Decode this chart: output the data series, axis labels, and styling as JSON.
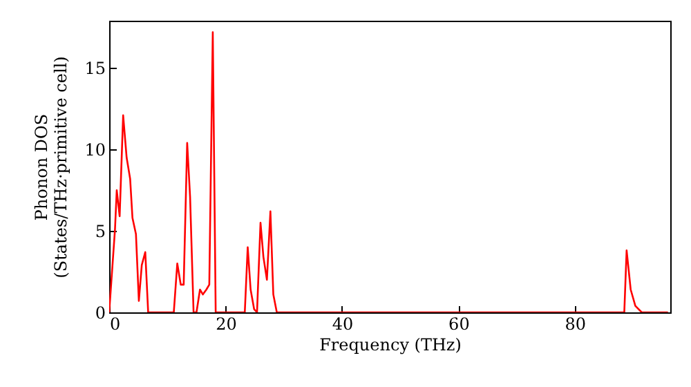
{
  "chart_data": {
    "type": "line",
    "xlabel": "Frequency (THz)",
    "ylabel": "Phonon DOS\n(States/THz·primitive cell)",
    "xlim": [
      0,
      96.4
    ],
    "ylim": [
      0,
      17.9
    ],
    "xticks": [
      0,
      20,
      40,
      60,
      80
    ],
    "yticks": [
      0,
      5,
      10,
      15
    ],
    "grid": false,
    "marker": "none",
    "line_style": "solid",
    "x": [
      0,
      1.0,
      1.3,
      1.8,
      2.4,
      3.0,
      3.6,
      4.0,
      4.6,
      5.1,
      5.6,
      6.2,
      6.7,
      11.1,
      11.7,
      12.3,
      12.8,
      13.4,
      13.9,
      14.5,
      15.0,
      15.6,
      16.1,
      16.7,
      17.2,
      17.8,
      18.3,
      23.3,
      23.8,
      24.3,
      24.9,
      25.4,
      26.0,
      26.5,
      27.1,
      27.7,
      28.2,
      28.8,
      88.5,
      88.9,
      89.6,
      90.4,
      91.5,
      96.0
    ],
    "series": [
      {
        "color": "#ff0000",
        "values": [
          0,
          5.1,
          7.5,
          5.9,
          12.1,
          9.5,
          8.2,
          5.8,
          4.8,
          0.7,
          2.9,
          3.7,
          0,
          0,
          3.0,
          1.7,
          1.7,
          10.4,
          7.1,
          0,
          0,
          1.4,
          1.1,
          1.4,
          1.7,
          17.2,
          0,
          0,
          4.0,
          1.4,
          0.2,
          0,
          5.5,
          3.4,
          2.0,
          6.2,
          1.1,
          0,
          0,
          3.8,
          1.4,
          0.4,
          0,
          0
        ]
      }
    ]
  }
}
